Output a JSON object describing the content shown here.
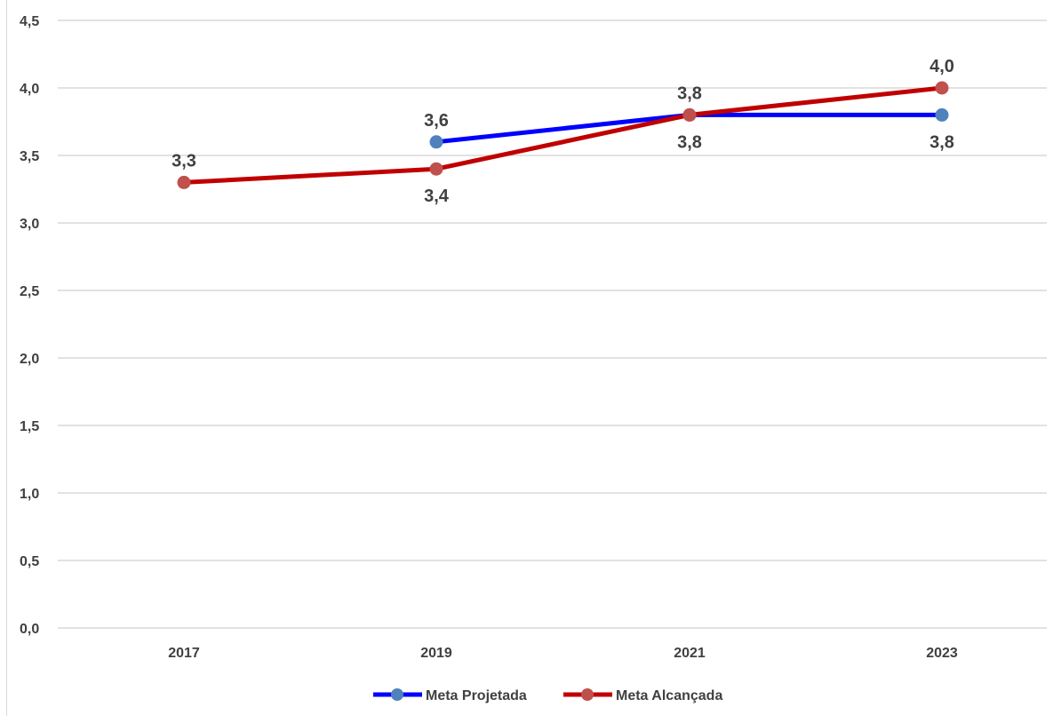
{
  "chart_data": {
    "type": "line",
    "categories": [
      "2017",
      "2019",
      "2021",
      "2023"
    ],
    "ylim": [
      0,
      4.5
    ],
    "yticks": [
      "0,0",
      "0,5",
      "1,0",
      "1,5",
      "2,0",
      "2,5",
      "3,0",
      "3,5",
      "4,0",
      "4,5"
    ],
    "grid": true,
    "legend_position": "bottom",
    "series": [
      {
        "name": "Meta Projetada",
        "values": [
          null,
          3.6,
          3.8,
          3.8
        ],
        "labels": [
          null,
          "3,6",
          "3,8",
          "3,8"
        ],
        "label_side": [
          null,
          "above",
          "below",
          "below"
        ],
        "line_color": "#0000ff",
        "marker_color": "#4f81bd"
      },
      {
        "name": "Meta Alcançada",
        "values": [
          3.3,
          3.4,
          3.8,
          4.0
        ],
        "labels": [
          "3,3",
          "3,4",
          "3,8",
          "4,0"
        ],
        "label_side": [
          "above",
          "below",
          "above",
          "above"
        ],
        "line_color": "#c00000",
        "marker_color": "#c0504d"
      }
    ]
  }
}
